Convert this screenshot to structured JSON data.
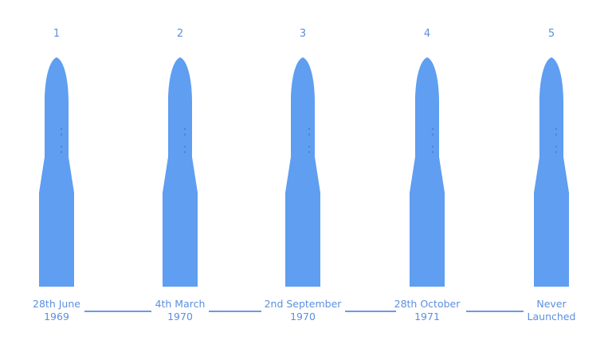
{
  "colors": {
    "rocket_fill": "#5f9ef0",
    "rocket_detail": "#3d6fb8",
    "text": "#5b8fe0",
    "connector": "#6a9be4"
  },
  "launches": [
    {
      "number": "1",
      "date_line1": "28th June",
      "date_line2": "1969",
      "icon": "rocket-icon"
    },
    {
      "number": "2",
      "date_line1": "4th March",
      "date_line2": "1970",
      "icon": "rocket-icon"
    },
    {
      "number": "3",
      "date_line1": "2nd September",
      "date_line2": "1970",
      "icon": "rocket-icon"
    },
    {
      "number": "4",
      "date_line1": "28th October",
      "date_line2": "1971",
      "icon": "rocket-icon"
    },
    {
      "number": "5",
      "date_line1": "Never",
      "date_line2": "Launched",
      "icon": "rocket-icon"
    }
  ]
}
